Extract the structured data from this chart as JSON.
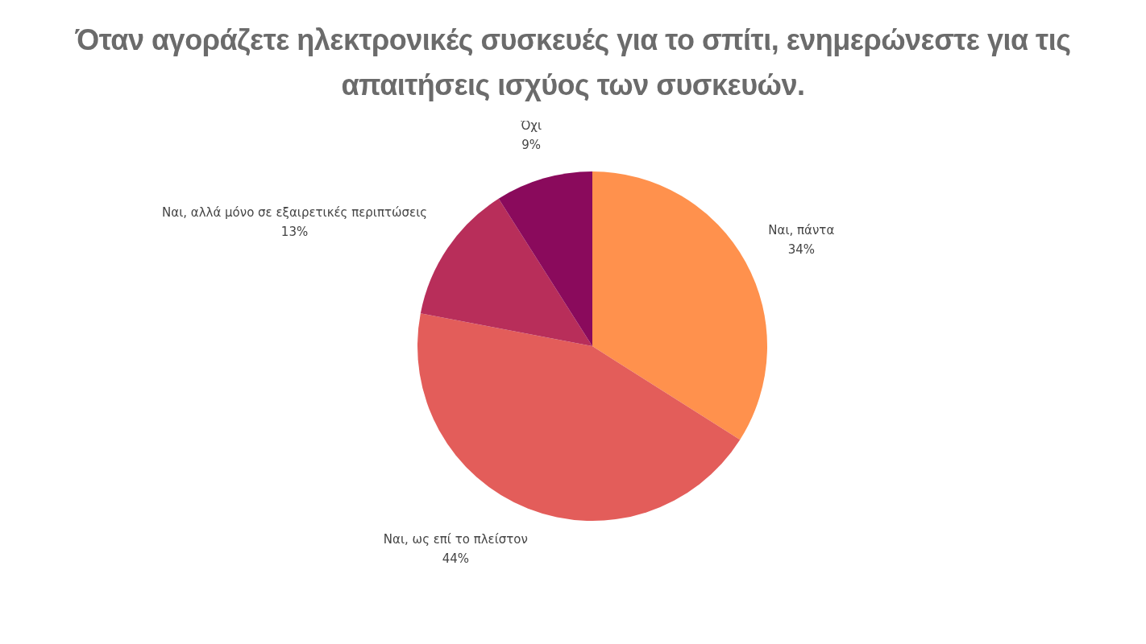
{
  "chart_data": {
    "type": "pie",
    "title": "Όταν αγοράζετε ηλεκτρονικές συσκευές για το σπίτι, ενημερώνεστε για τις απαιτήσεις ισχύος των συσκευών.",
    "categories": [
      "Ναι, πάντα",
      "Ναι, ως επί το πλείστον",
      "Ναι, αλλά μόνο σε εξαιρετικές περιπτώσεις",
      "Όχι"
    ],
    "values": [
      34,
      44,
      13,
      9
    ],
    "value_labels": [
      "34%",
      "44%",
      "13%",
      "9%"
    ],
    "colors": [
      "#ff914d",
      "#e35d5a",
      "#b82e5a",
      "#8a0a5c"
    ],
    "legend": false
  }
}
